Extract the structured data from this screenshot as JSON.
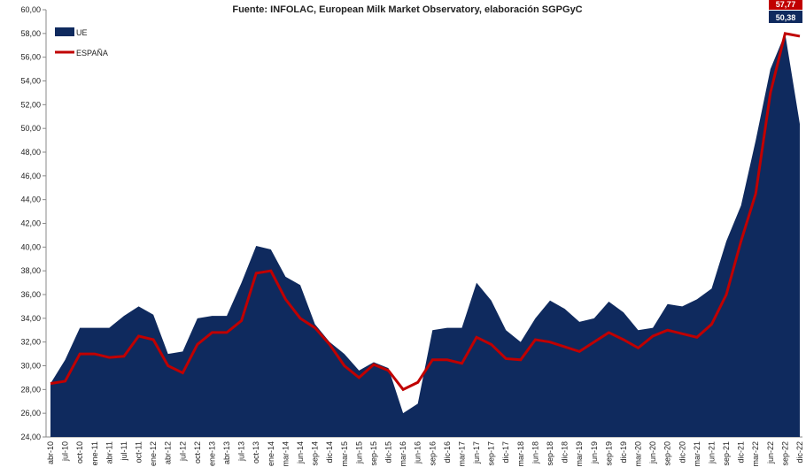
{
  "chart_data": {
    "type": "area",
    "subtitle": "Fuente: INFOLAC, European Milk Market Observatory,  elaboración SGPGyC",
    "categories": [
      "abr-10",
      "jul-10",
      "oct-10",
      "ene-11",
      "abr-11",
      "jul-11",
      "oct-11",
      "ene-12",
      "abr-12",
      "jul-12",
      "oct-12",
      "ene-13",
      "abr-13",
      "jul-13",
      "oct-13",
      "ene-14",
      "mar-14",
      "jun-14",
      "sep-14",
      "dic-14",
      "mar-15",
      "jun-15",
      "sep-15",
      "dic-15",
      "mar-16",
      "jun-16",
      "sep-16",
      "dic-16",
      "mar-17",
      "jun-17",
      "sep-17",
      "dic-17",
      "mar-18",
      "jun-18",
      "sep-18",
      "dic-18",
      "mar-19",
      "jun-19",
      "sep-19",
      "dic-19",
      "mar-20",
      "jun-20",
      "sep-20",
      "dic-20",
      "mar-21",
      "jun-21",
      "sep-21",
      "dic-21",
      "mar-22",
      "jun-22",
      "sep-22",
      "dic-22"
    ],
    "series": [
      {
        "name": "UE",
        "type": "area",
        "color": "#0f2a5e",
        "values": [
          28.5,
          30.5,
          33.2,
          33.2,
          33.2,
          34.2,
          35.0,
          34.3,
          31.0,
          31.2,
          34.0,
          34.2,
          34.2,
          37.0,
          40.1,
          39.8,
          37.5,
          36.8,
          33.5,
          32.0,
          31.0,
          29.6,
          30.3,
          29.8,
          26.0,
          26.8,
          33.0,
          33.2,
          33.2,
          37.0,
          35.5,
          33.0,
          32.0,
          34.0,
          35.5,
          34.8,
          33.7,
          34.0,
          35.4,
          34.5,
          33.0,
          33.2,
          35.2,
          35.0,
          35.6,
          36.5,
          40.5,
          43.5,
          49.0,
          55.0,
          58.0,
          50.38
        ],
        "value_labels": [
          null,
          null,
          null,
          null,
          null,
          null,
          null,
          null,
          null,
          null,
          null,
          null,
          null,
          null,
          null,
          null,
          null,
          null,
          null,
          null,
          null,
          null,
          null,
          null,
          null,
          null,
          null,
          null,
          null,
          null,
          null,
          null,
          null,
          null,
          null,
          null,
          null,
          null,
          null,
          null,
          null,
          null,
          null,
          null,
          null,
          null,
          null,
          null,
          null,
          null,
          null,
          "50,38"
        ]
      },
      {
        "name": "ESPAÑA",
        "type": "line",
        "color": "#c00000",
        "values": [
          28.5,
          28.7,
          31.0,
          31.0,
          30.7,
          30.8,
          32.5,
          32.2,
          30.0,
          29.4,
          31.8,
          32.8,
          32.8,
          33.8,
          37.8,
          38.0,
          35.6,
          34.0,
          33.2,
          31.8,
          30.0,
          29.0,
          30.1,
          29.6,
          28.0,
          28.6,
          30.5,
          30.5,
          30.2,
          32.4,
          31.8,
          30.6,
          30.5,
          32.2,
          32.0,
          31.6,
          31.2,
          32.0,
          32.8,
          32.2,
          31.5,
          32.5,
          33.0,
          32.7,
          32.4,
          33.5,
          36.0,
          40.5,
          44.5,
          53.0,
          58.0,
          57.77
        ],
        "value_labels": [
          null,
          null,
          null,
          null,
          null,
          null,
          null,
          null,
          null,
          null,
          null,
          null,
          null,
          null,
          null,
          null,
          null,
          null,
          null,
          null,
          null,
          null,
          null,
          null,
          null,
          null,
          null,
          null,
          null,
          null,
          null,
          null,
          null,
          null,
          null,
          null,
          null,
          null,
          null,
          null,
          null,
          null,
          null,
          null,
          null,
          null,
          null,
          null,
          null,
          null,
          null,
          "57,77"
        ]
      }
    ],
    "ylim": [
      24,
      60
    ],
    "yticks": [
      {
        "value": 24,
        "label": "24,00"
      },
      {
        "value": 26,
        "label": "26,00"
      },
      {
        "value": 28,
        "label": "28,00"
      },
      {
        "value": 30,
        "label": "30,00"
      },
      {
        "value": 32,
        "label": "32,00"
      },
      {
        "value": 34,
        "label": "34,00"
      },
      {
        "value": 36,
        "label": "36,00"
      },
      {
        "value": 38,
        "label": "38,00"
      },
      {
        "value": 40,
        "label": "40,00"
      },
      {
        "value": 42,
        "label": "42,00"
      },
      {
        "value": 44,
        "label": "44,00"
      },
      {
        "value": 46,
        "label": "46,00"
      },
      {
        "value": 48,
        "label": "48,00"
      },
      {
        "value": 50,
        "label": "50,00"
      },
      {
        "value": 52,
        "label": "52,00"
      },
      {
        "value": 54,
        "label": "54,00"
      },
      {
        "value": 56,
        "label": "56,00"
      },
      {
        "value": 58,
        "label": "58,00"
      },
      {
        "value": 60,
        "label": "60,00"
      }
    ],
    "legend": "top-left"
  }
}
